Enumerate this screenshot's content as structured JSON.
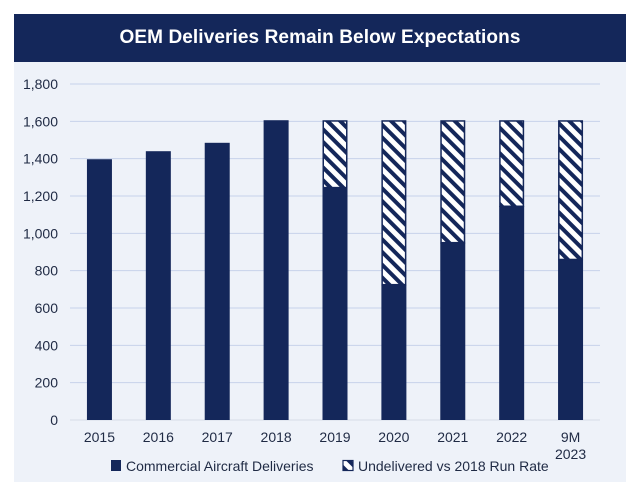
{
  "chart_data": {
    "type": "bar",
    "stacked": true,
    "title": "OEM Deliveries Remain Below Expectations",
    "xlabel": "",
    "ylabel": "",
    "ylim": [
      0,
      1800
    ],
    "yticks": [
      0,
      200,
      400,
      600,
      800,
      1000,
      1200,
      1400,
      1600,
      1800
    ],
    "ytick_labels": [
      "0",
      "200",
      "400",
      "600",
      "800",
      "1,000",
      "1,200",
      "1,400",
      "1,600",
      "1,800"
    ],
    "categories": [
      [
        "2015"
      ],
      [
        "2016"
      ],
      [
        "2017"
      ],
      [
        "2018"
      ],
      [
        "2019"
      ],
      [
        "2020"
      ],
      [
        "2021"
      ],
      [
        "2022"
      ],
      [
        "9M",
        "2023"
      ]
    ],
    "grid": true,
    "legend_position": "bottom",
    "series": [
      {
        "name": "Commercial Aircraft Deliveries",
        "style": "solid",
        "color": "#14275a",
        "values": [
          1397,
          1440,
          1485,
          1606,
          1245,
          725,
          950,
          1145,
          860
        ]
      },
      {
        "name": "Undelivered vs 2018 Run Rate",
        "style": "hatched",
        "color": "#14275a",
        "values": [
          0,
          0,
          0,
          0,
          361,
          881,
          656,
          461,
          746
        ]
      }
    ]
  }
}
